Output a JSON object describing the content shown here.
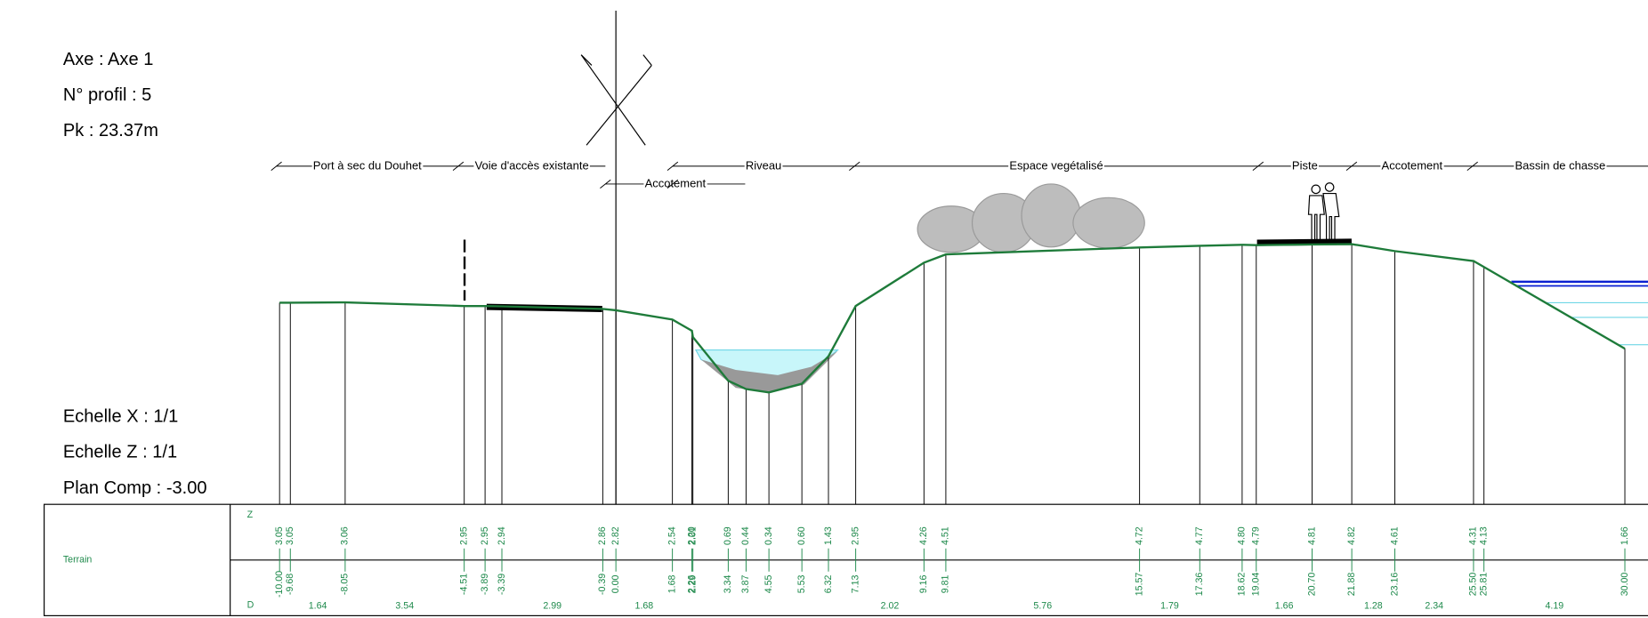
{
  "header": {
    "axe": "Axe : Axe 1",
    "profil": "N° profil : 5",
    "pk": "Pk : 23.37m"
  },
  "scale": {
    "x": "Echelle X : 1/1",
    "z": "Echelle Z : 1/1",
    "plan": "Plan Comp : -3.00"
  },
  "zones": [
    "Port à sec du Douhet",
    "Voie d'accès existante",
    "Riveau",
    "Espace vegétalisé",
    "Piste",
    "Accotement",
    "Bassin de chasse"
  ],
  "sub_zone": "Accotement",
  "table": {
    "row_label": "Terrain",
    "z_label": "Z",
    "d_label": "D",
    "stations": [
      {
        "z": "3.05",
        "d": "-10.00"
      },
      {
        "z": "3.05",
        "d": "-9.68"
      },
      {
        "z": "3.06",
        "d": "-8.05"
      },
      {
        "z": "2.95",
        "d": "-4.51"
      },
      {
        "z": "2.95",
        "d": "-3.89"
      },
      {
        "z": "2.94",
        "d": "-3.39"
      },
      {
        "z": "2.86",
        "d": "-0.39"
      },
      {
        "z": "2.82",
        "d": "0.00"
      },
      {
        "z": "2.54",
        "d": "1.68"
      },
      {
        "z": "2.20",
        "d": "2.26"
      },
      {
        "z": "2.01",
        "d": "2.29"
      },
      {
        "z": "0.69",
        "d": "3.34"
      },
      {
        "z": "0.44",
        "d": "3.87"
      },
      {
        "z": "0.34",
        "d": "4.55"
      },
      {
        "z": "0.60",
        "d": "5.53"
      },
      {
        "z": "1.43",
        "d": "6.32"
      },
      {
        "z": "2.95",
        "d": "7.13"
      },
      {
        "z": "4.26",
        "d": "9.16"
      },
      {
        "z": "4.51",
        "d": "9.81"
      },
      {
        "z": "4.72",
        "d": "15.57"
      },
      {
        "z": "4.77",
        "d": "17.36"
      },
      {
        "z": "4.80",
        "d": "18.62"
      },
      {
        "z": "4.79",
        "d": "19.04"
      },
      {
        "z": "4.81",
        "d": "20.70"
      },
      {
        "z": "4.82",
        "d": "21.88"
      },
      {
        "z": "4.61",
        "d": "23.16"
      },
      {
        "z": "4.31",
        "d": "25.50"
      },
      {
        "z": "4.13",
        "d": "25.81"
      },
      {
        "z": "1.66",
        "d": "30.00"
      }
    ],
    "distances": [
      "1.64",
      "3.54",
      "2.99",
      "1.68",
      "2.02",
      "5.76",
      "1.79",
      "1.66",
      "1.28",
      "2.34",
      "4.19"
    ]
  }
}
